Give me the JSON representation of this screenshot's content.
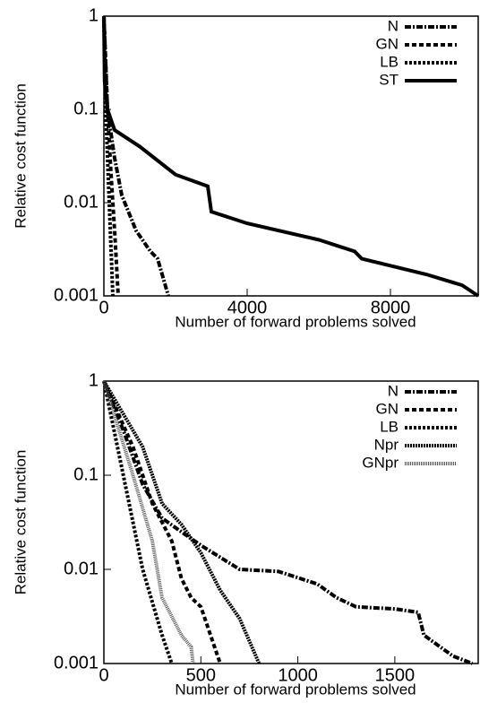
{
  "chart_data": [
    {
      "type": "line",
      "xlabel": "Number of forward problems solved",
      "ylabel": "Relative cost function",
      "xlim": [
        0,
        10450
      ],
      "ylim": [
        0.001,
        1
      ],
      "ylog": true,
      "xticks": [
        0,
        4000,
        8000
      ],
      "yticks": [
        1,
        0.1,
        0.01,
        0.001
      ],
      "legend": "upper right",
      "series": [
        {
          "name": "N",
          "color": "#000000",
          "dash": "7,2,2,2",
          "x": [
            0,
            100,
            300,
            500,
            900,
            1300,
            1500,
            1800
          ],
          "values": [
            1,
            0.1,
            0.03,
            0.012,
            0.005,
            0.003,
            0.0025,
            0.001
          ]
        },
        {
          "name": "GN",
          "color": "#000000",
          "dash": "5,3",
          "x": [
            0,
            100,
            200,
            300,
            400
          ],
          "values": [
            1,
            0.1,
            0.02,
            0.005,
            0.001
          ]
        },
        {
          "name": "LB",
          "color": "#000000",
          "dash": "3,2",
          "x": [
            0,
            50,
            150,
            250
          ],
          "values": [
            1,
            0.1,
            0.01,
            0.001
          ]
        },
        {
          "name": "ST",
          "color": "#000000",
          "dash": "",
          "x": [
            0,
            20,
            100,
            300,
            1000,
            2000,
            2900,
            3000,
            4000,
            6000,
            7000,
            7200,
            9000,
            10000,
            10450
          ],
          "values": [
            1,
            0.2,
            0.1,
            0.06,
            0.04,
            0.02,
            0.015,
            0.008,
            0.006,
            0.004,
            0.003,
            0.0025,
            0.0017,
            0.0013,
            0.001
          ]
        }
      ]
    },
    {
      "type": "line",
      "xlabel": "Number of forward problems solved",
      "ylabel": "Relative cost function",
      "xlim": [
        0,
        1930
      ],
      "ylim": [
        0.001,
        1
      ],
      "ylog": true,
      "xticks": [
        0,
        500,
        1000,
        1500
      ],
      "yticks": [
        1,
        0.1,
        0.01,
        0.001
      ],
      "legend": "upper right",
      "series": [
        {
          "name": "N",
          "color": "#000000",
          "dash": "7,2,2,2",
          "x": [
            0,
            100,
            200,
            300,
            400,
            500,
            700,
            900,
            1100,
            1200,
            1300,
            1500,
            1620,
            1650,
            1800,
            1900
          ],
          "values": [
            1,
            0.3,
            0.08,
            0.035,
            0.025,
            0.018,
            0.01,
            0.0095,
            0.007,
            0.005,
            0.004,
            0.0038,
            0.0035,
            0.002,
            0.0012,
            0.001
          ]
        },
        {
          "name": "GN",
          "color": "#000000",
          "dash": "5,3",
          "x": [
            0,
            150,
            250,
            350,
            400,
            450,
            500,
            550,
            600
          ],
          "values": [
            1,
            0.2,
            0.05,
            0.02,
            0.008,
            0.005,
            0.004,
            0.002,
            0.001
          ]
        },
        {
          "name": "LB",
          "color": "#000000",
          "dash": "3,2",
          "x": [
            0,
            100,
            200,
            300,
            350
          ],
          "values": [
            1,
            0.1,
            0.01,
            0.002,
            0.001
          ]
        },
        {
          "name": "Npr",
          "color": "#000000",
          "dash": "2,1",
          "x": [
            0,
            200,
            300,
            400,
            500,
            600,
            700,
            800
          ],
          "values": [
            1,
            0.2,
            0.05,
            0.03,
            0.015,
            0.006,
            0.003,
            0.001
          ]
        },
        {
          "name": "GNpr",
          "color": "#555555",
          "dash": "1,1",
          "x": [
            0,
            150,
            250,
            300,
            400,
            450,
            460
          ],
          "values": [
            1,
            0.1,
            0.02,
            0.005,
            0.002,
            0.0015,
            0.001
          ]
        }
      ]
    }
  ]
}
